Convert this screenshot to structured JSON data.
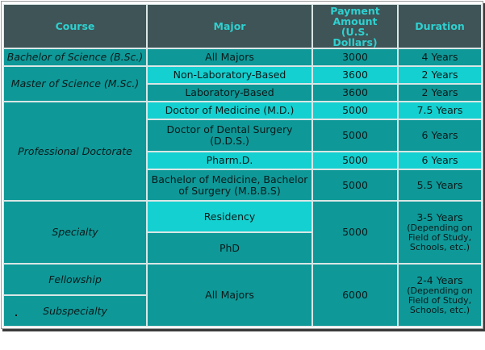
{
  "headers": {
    "course": "Course",
    "major": "Major",
    "payment": "Payment Amount (U.S. Dollars)",
    "duration": "Duration"
  },
  "rows": {
    "bsc": {
      "course": "Bachelor of Science (B.Sc.)",
      "major": "All Majors",
      "amount": "3000",
      "duration": "4 Years"
    },
    "msc": {
      "course": "Master of Science (M.Sc.)",
      "majors": [
        {
          "major": "Non-Laboratory-Based",
          "amount": "3600",
          "duration": "2 Years"
        },
        {
          "major": "Laboratory-Based",
          "amount": "3600",
          "duration": "2 Years"
        }
      ]
    },
    "doctorate": {
      "course": "Professional Doctorate",
      "majors": [
        {
          "major": "Doctor of Medicine (M.D.)",
          "amount": "5000",
          "duration": "7.5 Years"
        },
        {
          "major": "Doctor of Dental Surgery (D.D.S.)",
          "amount": "5000",
          "duration": "6 Years"
        },
        {
          "major": "Pharm.D.",
          "amount": "5000",
          "duration": "6 Years"
        },
        {
          "major": "Bachelor of Medicine, Bachelor of Surgery (M.B.B.S)",
          "amount": "5000",
          "duration": "5.5 Years"
        }
      ]
    },
    "specialty": {
      "course": "Specialty",
      "majors": [
        "Residency",
        "PhD"
      ],
      "amount": "5000",
      "duration_main": "3-5 Years",
      "duration_note": "(Depending on Field of Study, Schools, etc.)"
    },
    "fellowship": {
      "courses": [
        "Fellowship",
        "Subspecialty"
      ],
      "major": "All Majors",
      "amount": "6000",
      "duration_main": "2-4 Years",
      "duration_note": "(Depending on Field of Study, Schools, etc.)"
    }
  },
  "colors": {
    "header_bg": "#3e5456",
    "header_text": "#2fd0d0",
    "cell_dark": "#0f9898",
    "cell_light": "#15d0d0",
    "grid": "#d9e6e6"
  }
}
